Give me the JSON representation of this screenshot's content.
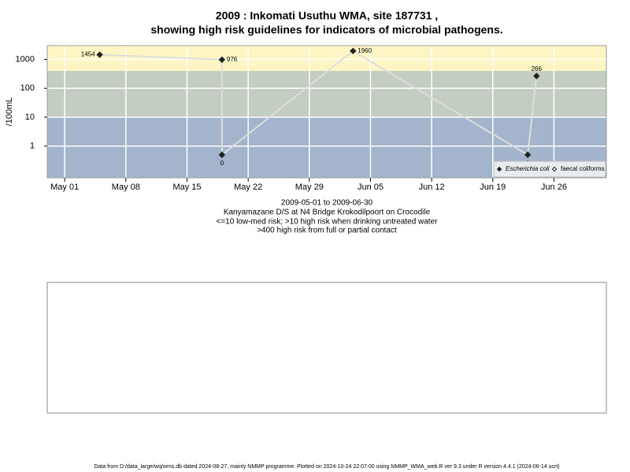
{
  "chart_data": {
    "type": "line",
    "title": [
      "2009 : Inkomati Usuthu WMA, site 187731 ,",
      "showing high risk guidelines for indicators of microbial pathogens."
    ],
    "ylabel": "/100mL",
    "caption": [
      "2009-05-01 to 2009-06-30",
      "Kanyamazane D/S at N4 Bridge Krokodilpoort on Crocodile",
      "<=10 low-med risk; >10 high risk when drinking untreated water",
      ">400 high risk from full or partial contact"
    ],
    "footer": "Data from D:/data_large/wq/wms.db dated 2024-08-27, mainly NMMP programme. Plotted on 2024-10-24 22:07:00 using NMMP_WMA_web.R ver 9.3 under R version 4.4.1 (2024-06-14 ucrt)",
    "log_y": true,
    "grid": true,
    "bands": [
      {
        "from": 10,
        "color": "#c4cdc1"
      },
      {
        "from": 400,
        "color": "#fdf6c4"
      }
    ],
    "band_base_color": "#a3b4cc",
    "ylim": [
      0.08,
      3000
    ],
    "yticks": [
      1,
      10,
      100,
      1000
    ],
    "xlim": [
      "2009-04-29",
      "2009-07-02"
    ],
    "xticks": [
      {
        "value": "2009-05-01",
        "label": "May 01"
      },
      {
        "value": "2009-05-08",
        "label": "May 08"
      },
      {
        "value": "2009-05-15",
        "label": "May 15"
      },
      {
        "value": "2009-05-22",
        "label": "May 22"
      },
      {
        "value": "2009-05-29",
        "label": "May 29"
      },
      {
        "value": "2009-06-05",
        "label": "Jun 05"
      },
      {
        "value": "2009-06-12",
        "label": "Jun 12"
      },
      {
        "value": "2009-06-19",
        "label": "Jun 19"
      },
      {
        "value": "2009-06-26",
        "label": "Jun 26"
      }
    ],
    "series": [
      {
        "name": "Escherichia coli",
        "color": "#222222",
        "x": [
          "2009-05-05",
          "2009-05-19",
          "2009-05-19",
          "2009-06-03",
          "2009-06-23",
          "2009-06-24"
        ],
        "values": [
          1454,
          976,
          0.5,
          1960,
          0.5,
          266
        ],
        "value_labels": [
          "1454",
          "976",
          "0",
          "1960",
          "0",
          "266"
        ]
      },
      {
        "name": "faecal coliforms",
        "color": "#222222",
        "x": [],
        "values": []
      }
    ],
    "line_color": "#dddddd"
  }
}
